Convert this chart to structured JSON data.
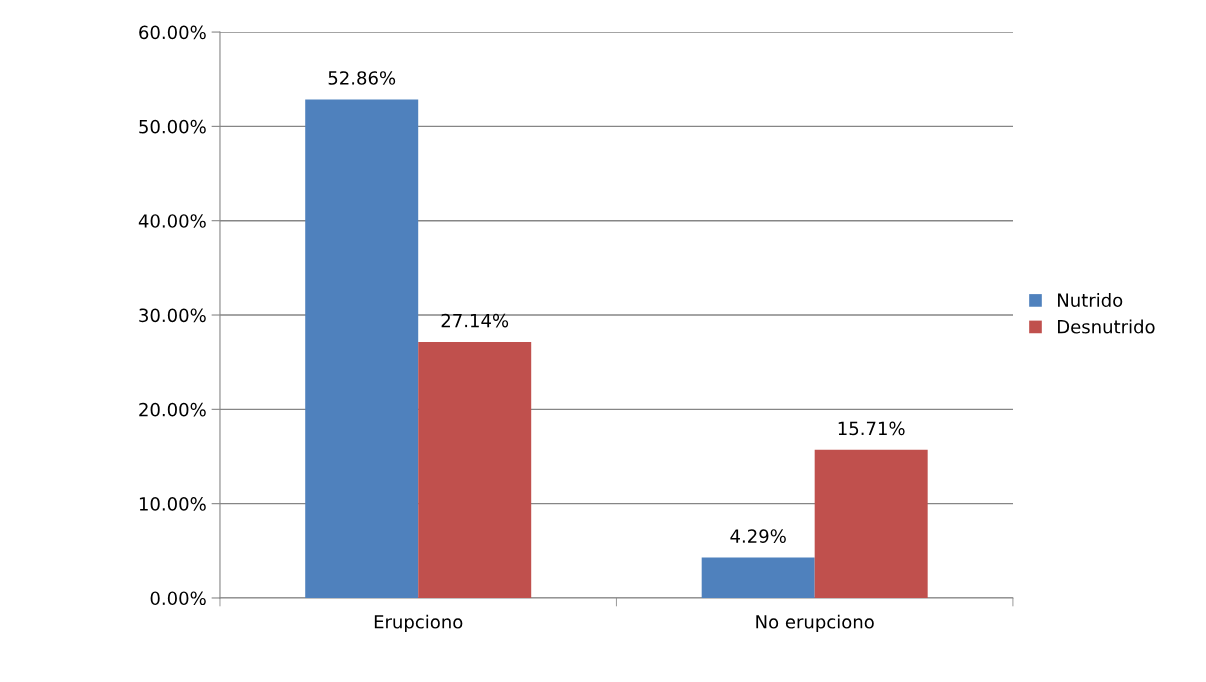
{
  "chart_data": {
    "type": "bar",
    "categories": [
      "Erupciono",
      "No erupciono"
    ],
    "series": [
      {
        "name": "Nutrido",
        "color": "#4f81bd",
        "values": [
          52.86,
          4.29
        ],
        "value_labels": [
          "52.86%",
          "4.29%"
        ]
      },
      {
        "name": "Desnutrido",
        "color": "#c0504d",
        "values": [
          27.14,
          15.71
        ],
        "value_labels": [
          "27.14%",
          "15.71%"
        ]
      }
    ],
    "ylim": [
      0,
      60
    ],
    "yticks": [
      {
        "value": 0,
        "label": "0.00%"
      },
      {
        "value": 10,
        "label": "10.00%"
      },
      {
        "value": 20,
        "label": "20.00%"
      },
      {
        "value": 30,
        "label": "30.00%"
      },
      {
        "value": 40,
        "label": "40.00%"
      },
      {
        "value": 50,
        "label": "50.00%"
      },
      {
        "value": 60,
        "label": "60.00%"
      }
    ],
    "grid": "y",
    "legend": "right"
  }
}
